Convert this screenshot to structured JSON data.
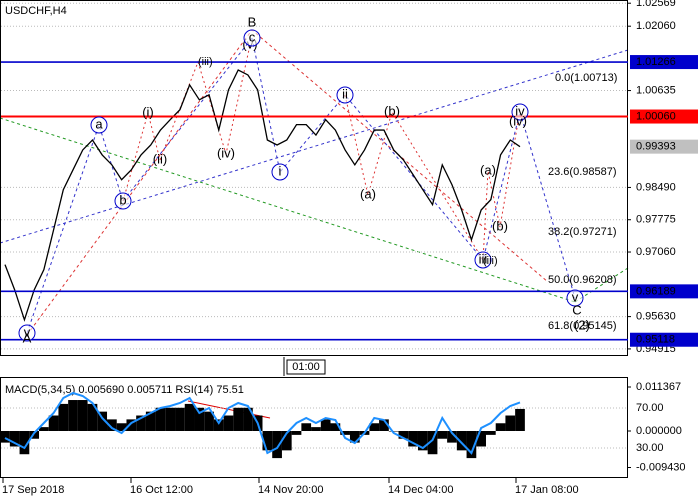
{
  "chart_data": [
    {
      "type": "price",
      "title": "USDCHF,H4",
      "color": "#000000",
      "values": [
        0.9678,
        0.9622,
        0.9556,
        0.9622,
        0.9667,
        0.9755,
        0.9844,
        0.9888,
        0.9932,
        0.9954,
        0.9921,
        0.9899,
        0.9866,
        0.9888,
        0.9921,
        0.9943,
        0.9976,
        0.9999,
        1.0021,
        1.0076,
        1.0043,
        1.0054,
        0.9976,
        1.0065,
        1.0109,
        1.0098,
        1.0065,
        0.9954,
        0.9943,
        0.9954,
        0.9988,
        0.9988,
        0.9965,
        0.9999,
        0.9976,
        0.9932,
        0.9899,
        0.9932,
        0.9976,
        0.9976,
        0.9932,
        0.991,
        0.9877,
        0.9844,
        0.9811,
        0.9899,
        0.9855,
        0.9799,
        0.9733,
        0.9799,
        0.9822,
        0.9921,
        0.9954,
        0.99393
      ],
      "ylim": [
        0.9478,
        1.0264
      ],
      "yticks": [
        1.02569,
        {
          "value": 1.0206,
          "label": "1.02060"
        },
        1.00635,
        {
          "value": 0.9849,
          "label": "0.98490"
        },
        0.97775,
        {
          "value": 0.9706,
          "label": "0.97060"
        },
        {
          "value": 0.9563,
          "label": "0.95630"
        },
        0.94915
      ],
      "grid": true,
      "levels": [
        {
          "value": 1.01266,
          "color": "#0000cc"
        },
        {
          "value": 1.0006,
          "label": "1.00060",
          "color": "#ff0000"
        },
        {
          "value": 0.96189,
          "color": "#0000cc"
        },
        {
          "value": 0.95118,
          "color": "#0000cc"
        }
      ],
      "current_price": {
        "value": 0.99393,
        "color": "#c0c0c0"
      },
      "time_label": "01:00",
      "annotations": [
        {
          "text": "v",
          "color": "#0000cc",
          "circled": true
        },
        {
          "text": "A",
          "color": "#ff0000",
          "circled": false
        },
        {
          "text": "a",
          "color": "#0000cc",
          "circled": true
        },
        {
          "text": "b",
          "color": "#0000cc",
          "circled": true
        },
        {
          "text": "(i)",
          "color": "#ff0000",
          "circled": false
        },
        {
          "text": "(ii)",
          "color": "#ff0000",
          "circled": false
        },
        {
          "text": "(iii)",
          "color": "#ff0000",
          "circled": false
        },
        {
          "text": "(iv)",
          "color": "#ff0000",
          "circled": false
        },
        {
          "text": "B",
          "color": "#ff0000",
          "circled": false
        },
        {
          "text": "(v)",
          "color": "#ff0000",
          "circled": false
        },
        {
          "text": "c",
          "color": "#0000cc",
          "circled": true
        },
        {
          "text": "i",
          "color": "#0000cc",
          "circled": true
        },
        {
          "text": "ii",
          "color": "#0000cc",
          "circled": true
        },
        {
          "text": "(a)",
          "color": "#ff0000",
          "circled": false
        },
        {
          "text": "(b)",
          "color": "#ff0000",
          "circled": false
        },
        {
          "text": "(a)",
          "color": "#ff0000",
          "circled": false
        },
        {
          "text": "(b)",
          "color": "#ff0000",
          "circled": false
        },
        {
          "text": "iii",
          "color": "#0000cc",
          "circled": true
        },
        {
          "text": "(iii)",
          "color": "#ff0000",
          "circled": false
        },
        {
          "text": "iv",
          "color": "#0000cc",
          "circled": true
        },
        {
          "text": "(iv)",
          "color": "#ff0000",
          "circled": false
        },
        {
          "text": "v",
          "color": "#0000cc",
          "circled": true
        },
        {
          "text": "C",
          "color": "#ff0000",
          "circled": false
        },
        {
          "text": "(2)",
          "color": "#008000",
          "circled": false
        },
        {
          "text": "0.0(1.00713)",
          "color": "#555555",
          "circled": false
        },
        {
          "text": "23.6(0.98587)",
          "color": "#555555",
          "circled": false
        },
        {
          "text": "38.2(0.97271)",
          "color": "#555555",
          "circled": false
        },
        {
          "text": "50.0(0.96208)",
          "color": "#555555",
          "circled": false
        },
        {
          "text": "61.8(0.95145)",
          "color": "#555555",
          "circled": false
        }
      ]
    },
    {
      "type": "macd",
      "title": "MACD(5,34,5) 0.005690 0.005711 RSI(14) 75.51",
      "histogram": {
        "color": "#000000",
        "values": [
          -0.003,
          -0.004,
          -0.006,
          -0.002,
          0.001,
          0.004,
          0.007,
          0.008,
          0.008,
          0.007,
          0.005,
          0.003,
          0.002,
          0.003,
          0.004,
          0.005,
          0.006,
          0.006,
          0.006,
          0.007,
          0.006,
          0.005,
          0.003,
          0.004,
          0.006,
          0.006,
          0.004,
          -0.005,
          -0.007,
          -0.005,
          -0.001,
          0.002,
          0.001,
          0.003,
          0.002,
          -0.001,
          -0.003,
          -0.001,
          0.002,
          0.003,
          0.0,
          -0.002,
          -0.004,
          -0.005,
          -0.006,
          -0.002,
          -0.003,
          -0.005,
          -0.007,
          -0.004,
          -0.001,
          0.002,
          0.004,
          0.0057
        ]
      },
      "rsi": {
        "color": "#1e90ff",
        "axis": "y2",
        "values": [
          40,
          35,
          30,
          45,
          55,
          65,
          80,
          85,
          82,
          75,
          60,
          50,
          45,
          55,
          60,
          65,
          70,
          72,
          75,
          80,
          65,
          70,
          55,
          70,
          75,
          72,
          55,
          25,
          30,
          45,
          55,
          60,
          55,
          60,
          58,
          40,
          35,
          45,
          60,
          58,
          45,
          40,
          35,
          30,
          38,
          60,
          45,
          35,
          25,
          50,
          55,
          65,
          72,
          75.51
        ]
      },
      "ylim": [
        -0.01214,
        0.01369
      ],
      "yticks": [
        0.011367,
        {
          "value": 0,
          "label": "0.000000"
        },
        {
          "value": -0.00943,
          "label": "-0.009430"
        }
      ],
      "y2lim": [
        0,
        100
      ],
      "y2ticks": [
        {
          "value": 70,
          "label": "70.00"
        },
        {
          "value": 30,
          "label": "30.00"
        }
      ],
      "x_labels": [
        "17 Sep 2018",
        "16 Oct 12:00",
        "14 Nov 20:00",
        "14 Dec 04:00",
        "17 Jan 08:00"
      ]
    }
  ]
}
